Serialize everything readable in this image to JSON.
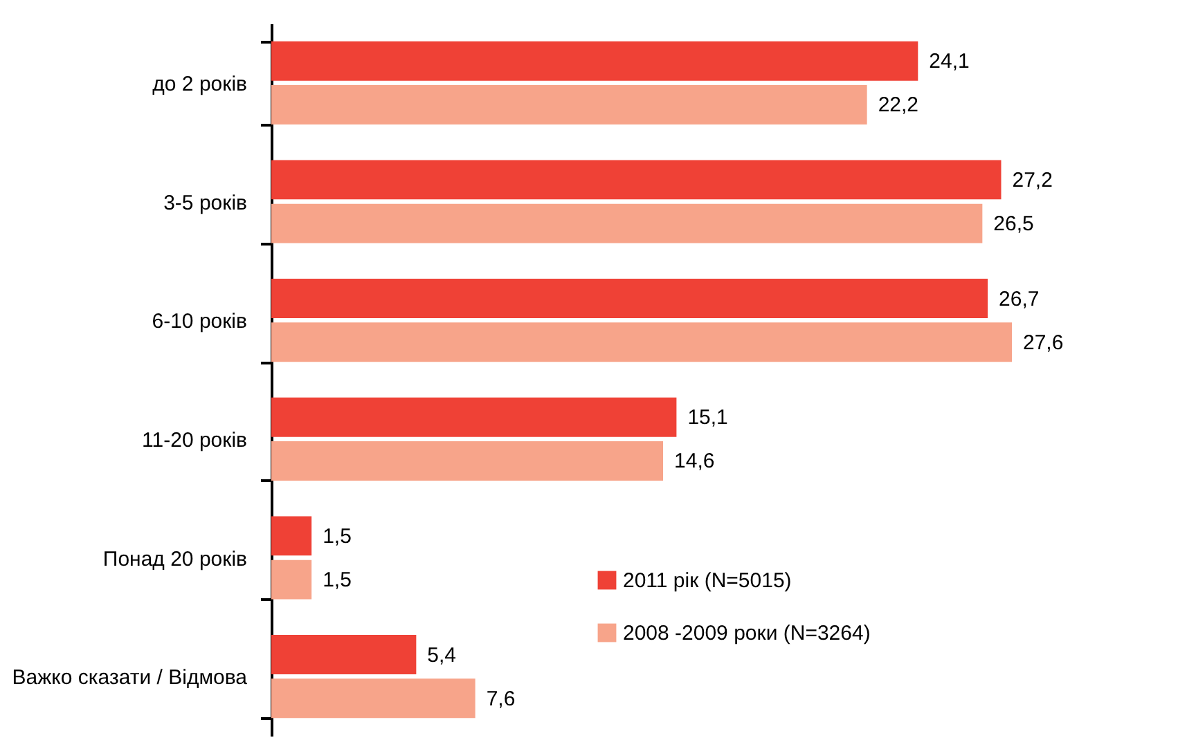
{
  "chart_data": {
    "type": "bar",
    "orientation": "horizontal",
    "categories": [
      "до 2 років",
      "3-5 років",
      "6-10 років",
      "11-20 років",
      "Понад 20 років",
      "Важко сказати / Відмова"
    ],
    "series": [
      {
        "name": "2011 рік  (N=5015)",
        "color": "#ef4136",
        "values": [
          24.1,
          27.2,
          26.7,
          15.1,
          1.5,
          5.4
        ],
        "value_labels": [
          "24,1",
          "27,2",
          "26,7",
          "15,1",
          "1,5",
          "5,4"
        ]
      },
      {
        "name": "2008 -2009 роки (N=3264)",
        "color": "#f7a48a",
        "values": [
          22.2,
          26.5,
          27.6,
          14.6,
          1.5,
          7.6
        ],
        "value_labels": [
          "22,2",
          "26,5",
          "27,6",
          "14,6",
          "1,5",
          "7,6"
        ]
      }
    ],
    "legend": "bottom right"
  }
}
